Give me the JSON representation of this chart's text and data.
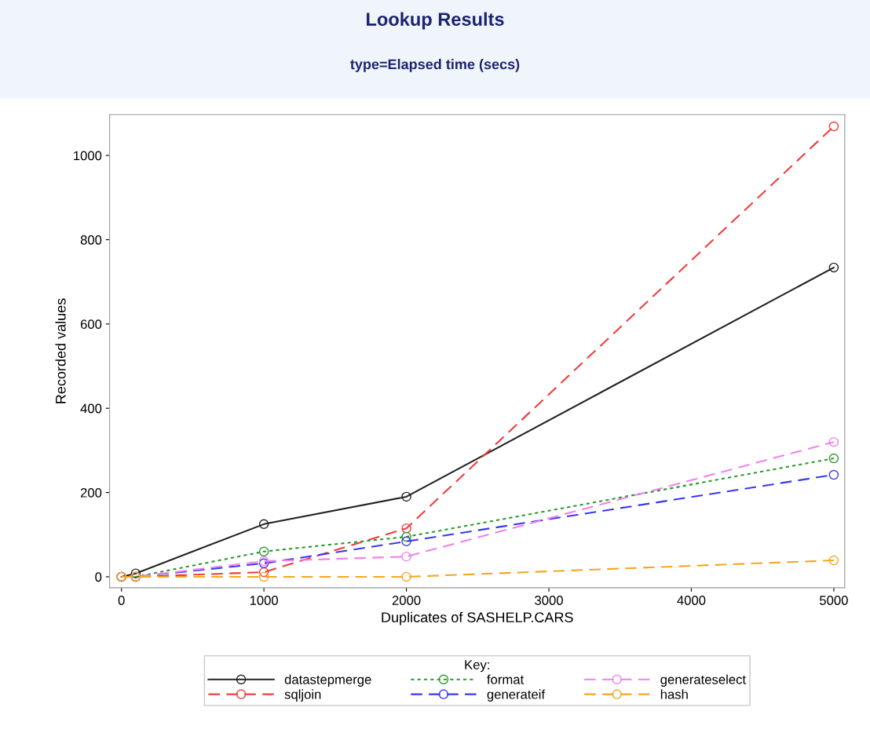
{
  "chart_data": {
    "type": "line",
    "title": "Lookup Results",
    "subtitle": "type=Elapsed time (secs)",
    "xlabel": "Duplicates of SASHELP.CARS",
    "ylabel": "Recorded values",
    "legend_title": "Key:",
    "x": [
      0,
      100,
      1000,
      2000,
      5000
    ],
    "series": [
      {
        "name": "datastepmerge",
        "color": "#222222",
        "line_style": "solid",
        "values": [
          0,
          8,
          125,
          190,
          734
        ]
      },
      {
        "name": "sqljoin",
        "color": "#f03c3c",
        "line_style": "dashed",
        "values": [
          0,
          0,
          11,
          115,
          1069
        ]
      },
      {
        "name": "format",
        "color": "#2a9a2a",
        "line_style": "dotted",
        "values": [
          0,
          0,
          60,
          95,
          281
        ]
      },
      {
        "name": "generateif",
        "color": "#3838f0",
        "line_style": "dashed",
        "values": [
          0,
          0,
          32,
          84,
          242
        ]
      },
      {
        "name": "generateselect",
        "color": "#ee82ee",
        "line_style": "dashed",
        "values": [
          0,
          0,
          37,
          48,
          320
        ]
      },
      {
        "name": "hash",
        "color": "#f5a623",
        "line_style": "dashed",
        "values": [
          0,
          0,
          0,
          0,
          39
        ]
      }
    ],
    "xlim": [
      -83,
      5077
    ],
    "xticks": [
      0,
      1000,
      2000,
      3000,
      4000,
      5000
    ],
    "ylim": [
      -26,
      1097
    ],
    "yticks": [
      0,
      200,
      400,
      600,
      800,
      1000
    ],
    "marker": "circle",
    "grid": false,
    "legend": "bottom"
  }
}
